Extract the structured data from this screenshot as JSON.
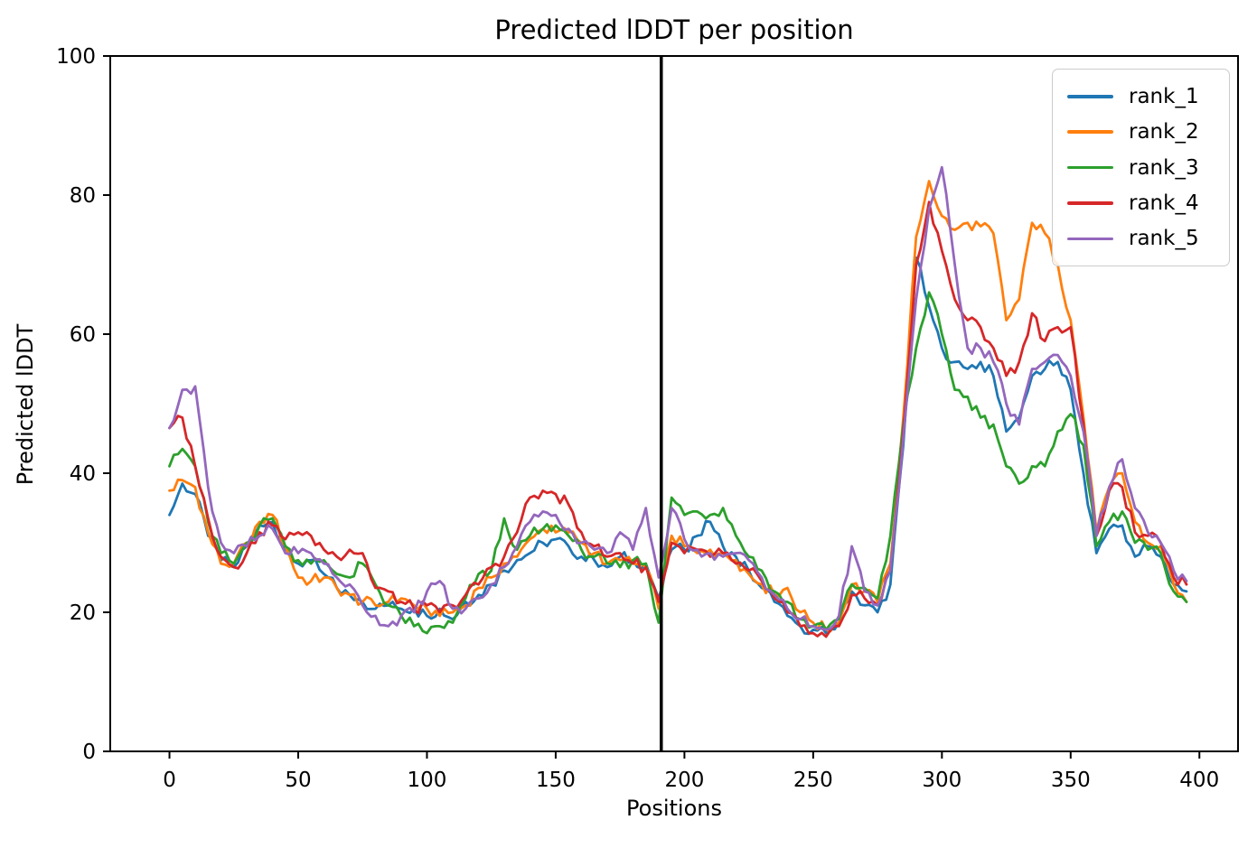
{
  "figure": {
    "background": "#ffffff"
  },
  "chart_data": {
    "type": "line",
    "title": "Predicted lDDT per position",
    "xlabel": "Positions",
    "ylabel": "Predicted lDDT",
    "xlim": [
      -23,
      415
    ],
    "ylim": [
      0,
      100
    ],
    "x_ticks": [
      0,
      50,
      100,
      150,
      200,
      250,
      300,
      350,
      400
    ],
    "y_ticks": [
      0,
      20,
      40,
      60,
      80,
      100
    ],
    "grid": false,
    "legend_position": "upper right",
    "frame_color": "#000000",
    "chain_break_line": {
      "x": 191,
      "color": "#000000",
      "width": 3.5
    },
    "x_start": 0,
    "x_step": 5,
    "render_jitter": 0.9,
    "line_width": 2.8,
    "series": [
      {
        "name": "rank_1",
        "color": "#1f77b4",
        "values": [
          34,
          38.5,
          37,
          31,
          27.5,
          26.5,
          29.5,
          32.5,
          33,
          29,
          27,
          27.5,
          25.5,
          23.5,
          22.5,
          21.5,
          20.5,
          21,
          20.5,
          20.5,
          19.5,
          20.5,
          19,
          21.5,
          22.5,
          24,
          26,
          27.5,
          28.5,
          30,
          30.5,
          29.5,
          28,
          27.5,
          26.5,
          28,
          27.5,
          27,
          22,
          29,
          29,
          31,
          33,
          29.5,
          28,
          26,
          23.5,
          21.5,
          19.5,
          18,
          17.5,
          17,
          18.5,
          23,
          21,
          20,
          24,
          44,
          71,
          64,
          58,
          56,
          55,
          56,
          54,
          46,
          48,
          54,
          55,
          56,
          52,
          40,
          28.5,
          32,
          32.5,
          28,
          29.5,
          28,
          24,
          23
        ]
      },
      {
        "name": "rank_2",
        "color": "#ff7f0e",
        "values": [
          37.5,
          39,
          38,
          31.5,
          27,
          27,
          30,
          33,
          34,
          29.5,
          25,
          24.5,
          25,
          23.5,
          22.5,
          21.5,
          21,
          21.5,
          22,
          21,
          20.5,
          19.5,
          20,
          21,
          23.5,
          25,
          27,
          28,
          30.5,
          32,
          31.5,
          31.5,
          30,
          28.5,
          27,
          27.5,
          27,
          26.5,
          20.5,
          31,
          29.5,
          28.5,
          29,
          28.5,
          27.5,
          25.5,
          24,
          22.5,
          23.5,
          20,
          18.5,
          17.5,
          18.5,
          24,
          23,
          21.5,
          27,
          48,
          74,
          82,
          77,
          75,
          76,
          75.5,
          74.5,
          62,
          65,
          76,
          74.5,
          70,
          62,
          48,
          31.5,
          38,
          40,
          33,
          30,
          29.5,
          24,
          21.5
        ]
      },
      {
        "name": "rank_3",
        "color": "#2ca02c",
        "values": [
          41,
          43.5,
          41,
          33,
          28.5,
          27,
          30,
          32.5,
          33.5,
          29.5,
          27.5,
          27,
          27.5,
          25.5,
          25,
          27,
          24,
          21,
          19.5,
          18,
          17,
          18,
          18.5,
          22,
          25.5,
          26,
          33.5,
          29,
          31,
          32,
          32.5,
          31,
          29,
          28,
          27,
          26.5,
          27.5,
          27,
          18.5,
          36.5,
          34,
          34.5,
          34,
          35,
          31,
          28,
          26,
          23,
          21.5,
          19,
          18,
          17.5,
          19,
          24,
          23.5,
          22,
          31,
          47,
          58,
          66,
          60,
          52,
          51,
          48,
          47,
          41,
          38.5,
          41,
          41,
          46,
          48.5,
          44,
          29.5,
          33,
          34.5,
          30,
          29,
          28.5,
          23,
          21.5
        ]
      },
      {
        "name": "rank_4",
        "color": "#d62728",
        "values": [
          46.5,
          48,
          41,
          33.5,
          28,
          26.5,
          28.5,
          31.5,
          32.5,
          30.5,
          31.5,
          31,
          29,
          28,
          29,
          28.5,
          23.5,
          23,
          21.5,
          20.5,
          21,
          20,
          21,
          22.5,
          24,
          26.5,
          28,
          31.5,
          36.5,
          37.5,
          37,
          35.5,
          31.5,
          29.5,
          28,
          28.5,
          27,
          26.5,
          21.5,
          30,
          28.5,
          29,
          28,
          28.5,
          27,
          26,
          24.5,
          22,
          20,
          18,
          17,
          16.5,
          18,
          22.5,
          22,
          21,
          26,
          46,
          70,
          79,
          72,
          65,
          62,
          61,
          58,
          54,
          56,
          63,
          59,
          61,
          61,
          47,
          31,
          37.5,
          38,
          31.5,
          31,
          30,
          25,
          24
        ]
      },
      {
        "name": "rank_5",
        "color": "#9467bd",
        "values": [
          46.5,
          52,
          52.5,
          38,
          30,
          28.5,
          29.5,
          31,
          32,
          28.5,
          28.5,
          28.5,
          27,
          25,
          24,
          21,
          19.5,
          18,
          19.5,
          20,
          23,
          24.5,
          20.5,
          20.5,
          22,
          24,
          26.5,
          29.5,
          33,
          34.5,
          34,
          32,
          30,
          29,
          28.5,
          31.5,
          29,
          35,
          25,
          35,
          30.5,
          29,
          28.5,
          28,
          28.5,
          27.5,
          25,
          22.5,
          20.5,
          19,
          18,
          17.5,
          19.5,
          29.5,
          23,
          21,
          26,
          45,
          65,
          78,
          84,
          70,
          58,
          58,
          56,
          50,
          47,
          55,
          56,
          57,
          54,
          46,
          31,
          38,
          42,
          35,
          31.5,
          30,
          26,
          24.5
        ]
      }
    ]
  }
}
